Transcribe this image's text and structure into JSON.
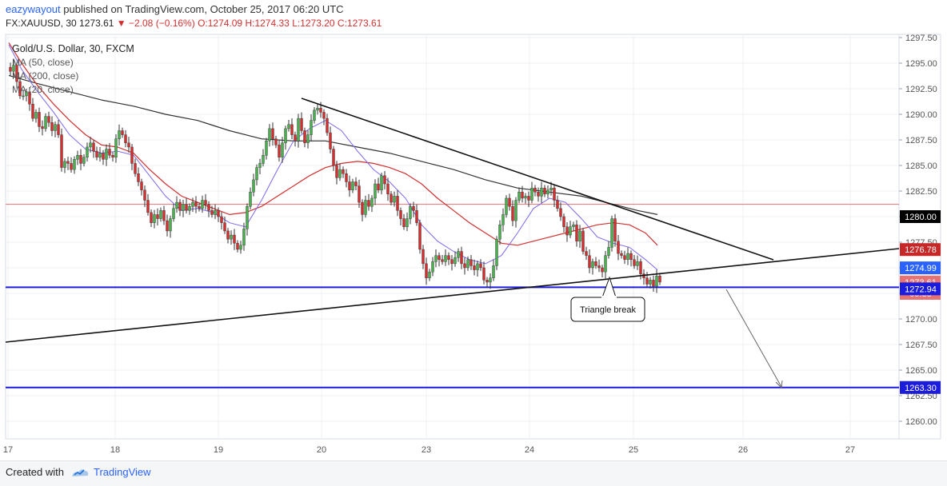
{
  "header": {
    "author": "eazywayout",
    "published": "published on TradingView.com, October 25, 2017 06:20 UTC",
    "symbol": "FX:XAUUSD, 30",
    "last": "1273.61",
    "change": "▼ −2.08 (−0.16%)",
    "ohlc": {
      "o": "O:1274.09",
      "h": "H:1274.33",
      "l": "L:1273.20",
      "c": "C:1273.61"
    }
  },
  "legend": {
    "title": "Gold/U.S. Dollar, 30, FXCM",
    "ma50": "MA (50, close)",
    "ma200": "MA (200, close)",
    "ma20": "MA (20, close)"
  },
  "annotation": {
    "text": "Triangle break"
  },
  "footer": {
    "created": "Created with",
    "brand": "TradingView"
  },
  "colors": {
    "up": "#4caf50",
    "down": "#d32f2f",
    "ma50": "#d32f2f",
    "ma200": "#333333",
    "ma20": "#7b68ee",
    "blue": "#1c1cdc",
    "hline": "#e57373"
  },
  "chart_data": {
    "type": "candlestick",
    "title": "Gold/U.S. Dollar, 30, FXCM",
    "x_ticks": [
      "17",
      "18",
      "19",
      "20",
      "23",
      "24",
      "25",
      "26",
      "27"
    ],
    "y_ticks": [
      "1297.50",
      "1295.00",
      "1292.50",
      "1290.00",
      "1287.50",
      "1285.00",
      "1282.50",
      "1280.00",
      "1277.50",
      "1275.00",
      "1272.50",
      "1270.00",
      "1267.50",
      "1265.00",
      "1262.50",
      "1260.00"
    ],
    "price_labels": [
      {
        "value": 1280.0,
        "text": "1280.00",
        "bg": "#000000"
      },
      {
        "value": 1276.78,
        "text": "1276.78",
        "bg": "#c62828"
      },
      {
        "value": 1274.99,
        "text": "1274.99",
        "bg": "#2962ff"
      },
      {
        "value": 1273.61,
        "text": "1273.61",
        "bg": "#e57373"
      },
      {
        "value": 1272.5,
        "text": "09:38",
        "bg": "#e57373"
      },
      {
        "value": 1272.94,
        "text": "1272.94",
        "bg": "#1c1cdc"
      },
      {
        "value": 1263.3,
        "text": "1263.30",
        "bg": "#1c1cdc"
      }
    ],
    "ylim": [
      1258.5,
      1298
    ],
    "resistance_line": 1281.2,
    "support_lines": [
      1273.1,
      1263.3
    ],
    "candles_path": [
      [
        0,
        1294.6
      ],
      [
        6,
        1294.2
      ],
      [
        10,
        1294.8
      ],
      [
        14,
        1293.2
      ],
      [
        18,
        1291.8
      ],
      [
        22,
        1291.8
      ],
      [
        26,
        1292.2
      ],
      [
        30,
        1291.0
      ],
      [
        34,
        1289.6
      ],
      [
        38,
        1290.2
      ],
      [
        42,
        1288.8
      ],
      [
        46,
        1288.6
      ],
      [
        50,
        1289.8
      ],
      [
        54,
        1289.2
      ],
      [
        58,
        1288.4
      ],
      [
        62,
        1289.0
      ],
      [
        66,
        1288.0
      ],
      [
        70,
        1284.8
      ],
      [
        74,
        1285.4
      ],
      [
        78,
        1285.2
      ],
      [
        82,
        1284.6
      ],
      [
        86,
        1285.6
      ],
      [
        90,
        1286.0
      ],
      [
        94,
        1285.2
      ],
      [
        98,
        1285.8
      ],
      [
        102,
        1286.8
      ],
      [
        106,
        1287.2
      ],
      [
        110,
        1286.4
      ],
      [
        114,
        1285.8
      ],
      [
        118,
        1286.2
      ],
      [
        122,
        1285.6
      ],
      [
        126,
        1286.6
      ],
      [
        130,
        1286.0
      ],
      [
        134,
        1285.8
      ],
      [
        138,
        1287.6
      ],
      [
        142,
        1288.4
      ],
      [
        146,
        1288.0
      ],
      [
        150,
        1287.2
      ],
      [
        154,
        1286.8
      ],
      [
        158,
        1285.2
      ],
      [
        162,
        1284.2
      ],
      [
        166,
        1283.4
      ],
      [
        170,
        1282.6
      ],
      [
        174,
        1281.6
      ],
      [
        178,
        1280.4
      ],
      [
        182,
        1279.4
      ],
      [
        186,
        1280.2
      ],
      [
        190,
        1279.8
      ],
      [
        194,
        1280.6
      ],
      [
        198,
        1279.6
      ],
      [
        202,
        1278.6
      ],
      [
        206,
        1279.8
      ],
      [
        210,
        1280.8
      ],
      [
        214,
        1281.4
      ],
      [
        218,
        1280.6
      ],
      [
        222,
        1281.2
      ],
      [
        226,
        1280.6
      ],
      [
        230,
        1281.0
      ],
      [
        234,
        1281.4
      ],
      [
        238,
        1281.0
      ],
      [
        242,
        1280.8
      ],
      [
        246,
        1281.6
      ],
      [
        250,
        1281.2
      ],
      [
        254,
        1280.6
      ],
      [
        258,
        1280.2
      ],
      [
        262,
        1280.6
      ],
      [
        266,
        1280.0
      ],
      [
        270,
        1279.4
      ],
      [
        274,
        1278.6
      ],
      [
        278,
        1277.8
      ],
      [
        282,
        1278.2
      ],
      [
        286,
        1277.4
      ],
      [
        290,
        1276.8
      ],
      [
        294,
        1277.2
      ],
      [
        298,
        1278.8
      ],
      [
        302,
        1281.0
      ],
      [
        306,
        1282.4
      ],
      [
        310,
        1283.6
      ],
      [
        314,
        1284.8
      ],
      [
        318,
        1285.2
      ],
      [
        322,
        1286.0
      ],
      [
        326,
        1287.4
      ],
      [
        330,
        1288.6
      ],
      [
        334,
        1287.6
      ],
      [
        338,
        1287.0
      ],
      [
        342,
        1285.8
      ],
      [
        346,
        1287.2
      ],
      [
        350,
        1288.6
      ],
      [
        354,
        1289.0
      ],
      [
        358,
        1288.0
      ],
      [
        362,
        1287.4
      ],
      [
        366,
        1289.6
      ],
      [
        370,
        1288.4
      ],
      [
        374,
        1287.2
      ],
      [
        378,
        1288.0
      ],
      [
        382,
        1289.4
      ],
      [
        386,
        1290.4
      ],
      [
        390,
        1290.6
      ],
      [
        394,
        1290.2
      ],
      [
        398,
        1289.6
      ],
      [
        402,
        1288.2
      ],
      [
        406,
        1286.6
      ],
      [
        410,
        1285.0
      ],
      [
        414,
        1283.8
      ],
      [
        418,
        1284.6
      ],
      [
        422,
        1284.2
      ],
      [
        426,
        1283.4
      ],
      [
        430,
        1282.6
      ],
      [
        434,
        1283.4
      ],
      [
        438,
        1283.0
      ],
      [
        442,
        1281.4
      ],
      [
        446,
        1280.2
      ],
      [
        450,
        1281.6
      ],
      [
        454,
        1281.0
      ],
      [
        458,
        1281.8
      ],
      [
        462,
        1283.2
      ],
      [
        466,
        1282.6
      ],
      [
        470,
        1284.0
      ],
      [
        474,
        1283.2
      ],
      [
        478,
        1282.2
      ],
      [
        482,
        1281.4
      ],
      [
        486,
        1282.0
      ],
      [
        490,
        1280.6
      ],
      [
        494,
        1279.8
      ],
      [
        498,
        1279.0
      ],
      [
        502,
        1279.8
      ],
      [
        506,
        1281.0
      ],
      [
        510,
        1280.6
      ],
      [
        514,
        1279.4
      ],
      [
        518,
        1276.8
      ],
      [
        522,
        1275.4
      ],
      [
        526,
        1274.0
      ],
      [
        530,
        1274.6
      ],
      [
        534,
        1275.6
      ],
      [
        538,
        1276.2
      ],
      [
        542,
        1275.8
      ],
      [
        546,
        1275.6
      ],
      [
        550,
        1276.2
      ],
      [
        554,
        1275.8
      ],
      [
        558,
        1275.4
      ],
      [
        562,
        1276.0
      ],
      [
        566,
        1276.6
      ],
      [
        570,
        1275.4
      ],
      [
        574,
        1275.0
      ],
      [
        578,
        1275.8
      ],
      [
        582,
        1275.2
      ],
      [
        586,
        1274.8
      ],
      [
        590,
        1275.4
      ],
      [
        594,
        1275.0
      ],
      [
        598,
        1273.8
      ],
      [
        602,
        1273.6
      ],
      [
        606,
        1274.0
      ],
      [
        610,
        1275.2
      ],
      [
        614,
        1277.8
      ],
      [
        618,
        1279.2
      ],
      [
        622,
        1280.2
      ],
      [
        626,
        1281.8
      ],
      [
        630,
        1281.0
      ],
      [
        634,
        1279.6
      ],
      [
        638,
        1281.6
      ],
      [
        642,
        1282.4
      ],
      [
        646,
        1281.8
      ],
      [
        650,
        1282.0
      ],
      [
        654,
        1281.6
      ],
      [
        658,
        1282.8
      ],
      [
        662,
        1282.4
      ],
      [
        666,
        1282.0
      ],
      [
        670,
        1282.8
      ],
      [
        674,
        1282.2
      ],
      [
        678,
        1282.6
      ],
      [
        682,
        1282.8
      ],
      [
        686,
        1281.6
      ],
      [
        690,
        1280.8
      ],
      [
        694,
        1280.0
      ],
      [
        698,
        1279.0
      ],
      [
        702,
        1278.2
      ],
      [
        706,
        1279.0
      ],
      [
        710,
        1279.2
      ],
      [
        714,
        1277.6
      ],
      [
        718,
        1278.6
      ],
      [
        722,
        1276.6
      ],
      [
        726,
        1276.2
      ],
      [
        730,
        1275.0
      ],
      [
        734,
        1275.6
      ],
      [
        738,
        1275.2
      ],
      [
        742,
        1275.0
      ],
      [
        746,
        1274.6
      ],
      [
        750,
        1276.2
      ],
      [
        754,
        1277.0
      ],
      [
        758,
        1279.8
      ],
      [
        762,
        1277.6
      ],
      [
        766,
        1276.4
      ],
      [
        770,
        1276.2
      ],
      [
        774,
        1275.8
      ],
      [
        778,
        1276.4
      ],
      [
        782,
        1275.8
      ],
      [
        786,
        1275.2
      ],
      [
        790,
        1275.6
      ],
      [
        794,
        1274.4
      ],
      [
        798,
        1274.0
      ],
      [
        802,
        1273.4
      ],
      [
        806,
        1273.8
      ],
      [
        810,
        1273.2
      ],
      [
        814,
        1274.2
      ],
      [
        818,
        1273.6
      ]
    ],
    "ma50_path": [
      [
        4,
        1297.0
      ],
      [
        20,
        1295.0
      ],
      [
        40,
        1292.8
      ],
      [
        60,
        1291.0
      ],
      [
        80,
        1289.4
      ],
      [
        100,
        1288.0
      ],
      [
        120,
        1287.0
      ],
      [
        140,
        1286.8
      ],
      [
        160,
        1286.2
      ],
      [
        180,
        1284.6
      ],
      [
        200,
        1283.2
      ],
      [
        220,
        1282.0
      ],
      [
        240,
        1281.4
      ],
      [
        260,
        1280.8
      ],
      [
        280,
        1280.2
      ],
      [
        300,
        1280.4
      ],
      [
        320,
        1281.0
      ],
      [
        340,
        1282.0
      ],
      [
        360,
        1283.0
      ],
      [
        380,
        1284.0
      ],
      [
        400,
        1284.8
      ],
      [
        420,
        1285.2
      ],
      [
        440,
        1285.4
      ],
      [
        460,
        1285.2
      ],
      [
        480,
        1284.8
      ],
      [
        500,
        1284.2
      ],
      [
        520,
        1283.2
      ],
      [
        540,
        1281.8
      ],
      [
        560,
        1280.6
      ],
      [
        580,
        1279.4
      ],
      [
        600,
        1278.4
      ],
      [
        620,
        1277.4
      ],
      [
        640,
        1277.2
      ],
      [
        660,
        1277.6
      ],
      [
        680,
        1278.0
      ],
      [
        700,
        1278.4
      ],
      [
        720,
        1278.8
      ],
      [
        740,
        1279.2
      ],
      [
        760,
        1279.4
      ],
      [
        780,
        1279.2
      ],
      [
        800,
        1278.4
      ],
      [
        815,
        1277.2
      ]
    ],
    "ma200_path": [
      [
        4,
        1293.8
      ],
      [
        40,
        1293.0
      ],
      [
        80,
        1292.2
      ],
      [
        120,
        1291.4
      ],
      [
        160,
        1290.8
      ],
      [
        200,
        1290.0
      ],
      [
        240,
        1289.4
      ],
      [
        280,
        1288.4
      ],
      [
        320,
        1287.6
      ],
      [
        360,
        1287.4
      ],
      [
        400,
        1287.4
      ],
      [
        440,
        1286.8
      ],
      [
        480,
        1286.2
      ],
      [
        520,
        1285.4
      ],
      [
        560,
        1284.6
      ],
      [
        600,
        1283.6
      ],
      [
        640,
        1282.8
      ],
      [
        680,
        1282.4
      ],
      [
        720,
        1282.0
      ],
      [
        760,
        1281.2
      ],
      [
        790,
        1280.6
      ],
      [
        815,
        1280.2
      ]
    ],
    "ma20_path": [
      [
        4,
        1296.8
      ],
      [
        20,
        1294.4
      ],
      [
        40,
        1292.2
      ],
      [
        60,
        1290.2
      ],
      [
        80,
        1288.0
      ],
      [
        100,
        1286.6
      ],
      [
        120,
        1286.2
      ],
      [
        140,
        1286.4
      ],
      [
        160,
        1286.0
      ],
      [
        180,
        1284.0
      ],
      [
        200,
        1282.0
      ],
      [
        220,
        1280.6
      ],
      [
        240,
        1280.8
      ],
      [
        260,
        1280.4
      ],
      [
        280,
        1279.4
      ],
      [
        300,
        1279.0
      ],
      [
        320,
        1281.6
      ],
      [
        340,
        1284.6
      ],
      [
        360,
        1287.4
      ],
      [
        380,
        1288.6
      ],
      [
        400,
        1289.4
      ],
      [
        420,
        1288.4
      ],
      [
        440,
        1286.4
      ],
      [
        460,
        1284.6
      ],
      [
        480,
        1283.4
      ],
      [
        500,
        1281.8
      ],
      [
        520,
        1279.2
      ],
      [
        540,
        1277.6
      ],
      [
        560,
        1276.6
      ],
      [
        580,
        1275.8
      ],
      [
        600,
        1275.4
      ],
      [
        620,
        1276.2
      ],
      [
        640,
        1278.4
      ],
      [
        660,
        1280.8
      ],
      [
        680,
        1281.8
      ],
      [
        700,
        1281.4
      ],
      [
        720,
        1279.8
      ],
      [
        740,
        1278.0
      ],
      [
        760,
        1277.4
      ],
      [
        780,
        1277.0
      ],
      [
        800,
        1275.8
      ],
      [
        815,
        1274.8
      ]
    ]
  }
}
